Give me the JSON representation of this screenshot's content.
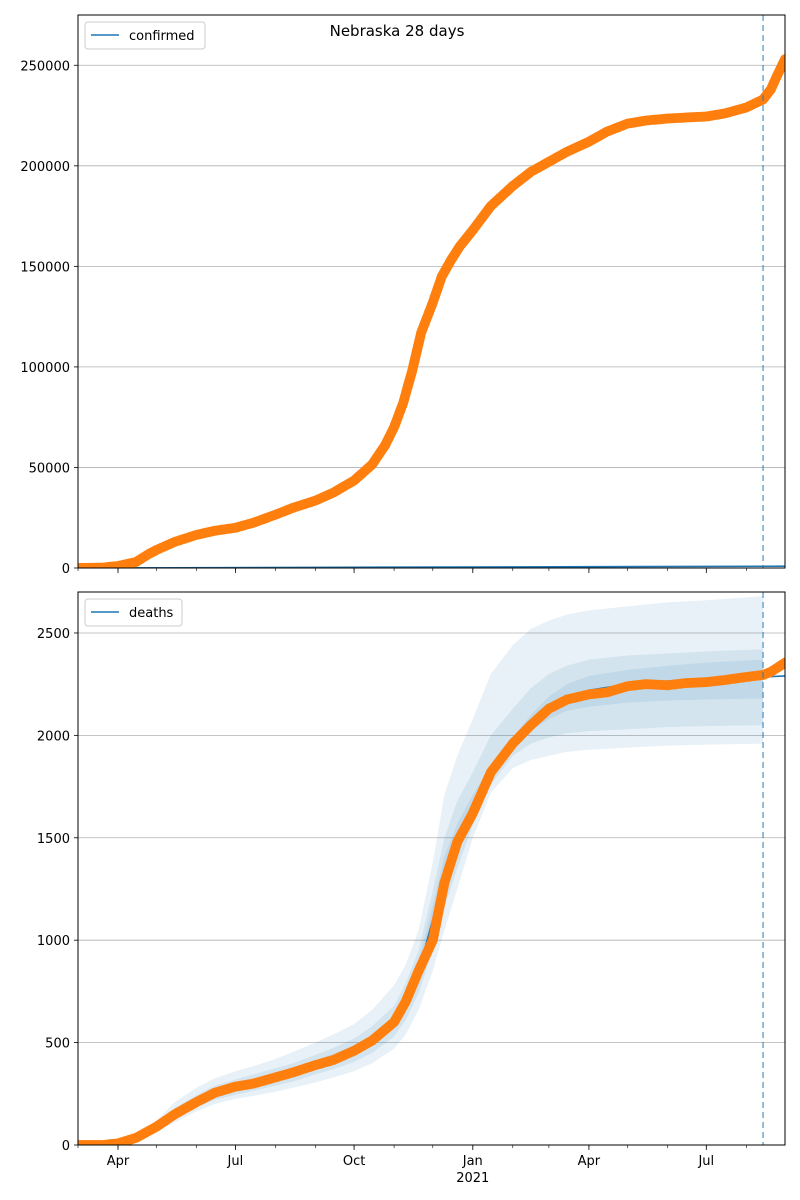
{
  "chart_data": [
    {
      "type": "line",
      "title": "Nebraska 28 days",
      "xlabel": "",
      "ylabel": "",
      "x_range": [
        "2020-03-01",
        "2021-08-31"
      ],
      "ylim": [
        0,
        275000
      ],
      "yticks": [
        0,
        50000,
        100000,
        150000,
        200000,
        250000
      ],
      "grid": "horizontal",
      "legend_position": "top-left",
      "vline_date": "2021-08-14",
      "vline_style": "dashed",
      "legend": [
        {
          "label": "confirmed",
          "color": "#1f77b4"
        }
      ],
      "model_line": {
        "name": "confirmed",
        "color": "#1f77b4",
        "x": [
          "2020-03-01",
          "2021-08-31"
        ],
        "y": [
          0,
          900
        ]
      },
      "observed": {
        "color": "#ff7f0e",
        "x": [
          "2020-03-01",
          "2020-03-20",
          "2020-04-01",
          "2020-04-15",
          "2020-04-25",
          "2020-05-01",
          "2020-05-15",
          "2020-06-01",
          "2020-06-15",
          "2020-07-01",
          "2020-07-15",
          "2020-08-01",
          "2020-08-15",
          "2020-09-01",
          "2020-09-15",
          "2020-10-01",
          "2020-10-15",
          "2020-10-25",
          "2020-11-01",
          "2020-11-08",
          "2020-11-15",
          "2020-11-22",
          "2020-12-01",
          "2020-12-08",
          "2020-12-15",
          "2020-12-22",
          "2021-01-01",
          "2021-01-15",
          "2021-02-01",
          "2021-02-15",
          "2021-03-01",
          "2021-03-15",
          "2021-04-01",
          "2021-04-15",
          "2021-05-01",
          "2021-05-15",
          "2021-06-01",
          "2021-06-15",
          "2021-07-01",
          "2021-07-15",
          "2021-08-01",
          "2021-08-14",
          "2021-08-20",
          "2021-08-25",
          "2021-08-31"
        ],
        "y": [
          0,
          200,
          1000,
          3000,
          7000,
          9000,
          13000,
          16500,
          18500,
          20000,
          22500,
          26500,
          30000,
          33500,
          37500,
          43500,
          51500,
          61000,
          70000,
          82000,
          98000,
          117000,
          132000,
          145000,
          153000,
          160000,
          168000,
          180000,
          190000,
          197000,
          202000,
          207000,
          212000,
          217000,
          221000,
          222500,
          223500,
          224000,
          224500,
          226000,
          229000,
          233000,
          238000,
          245000,
          253000
        ]
      }
    },
    {
      "type": "line",
      "title": "",
      "xlabel": "",
      "ylabel": "",
      "x_range": [
        "2020-03-01",
        "2021-08-31"
      ],
      "ylim": [
        0,
        2700
      ],
      "yticks": [
        0,
        500,
        1000,
        1500,
        2000,
        2500
      ],
      "xticks": [
        "Apr",
        "Jul",
        "Oct",
        "Jan",
        "Apr",
        "Jul"
      ],
      "xtick_dates": [
        "2020-04-01",
        "2020-07-01",
        "2020-10-01",
        "2021-01-01",
        "2021-04-01",
        "2021-07-01"
      ],
      "xtick_sublabel": "2021",
      "grid": "horizontal",
      "legend_position": "top-left",
      "vline_date": "2021-08-14",
      "vline_style": "dashed",
      "legend": [
        {
          "label": "deaths",
          "color": "#1f77b4"
        }
      ],
      "model_line": {
        "name": "deaths",
        "color": "#1f77b4",
        "x": [
          "2020-03-01",
          "2020-03-20",
          "2020-04-01",
          "2020-04-15",
          "2020-05-01",
          "2020-05-15",
          "2020-06-01",
          "2020-06-15",
          "2020-07-01",
          "2020-07-15",
          "2020-08-01",
          "2020-08-15",
          "2020-09-01",
          "2020-09-15",
          "2020-10-01",
          "2020-10-15",
          "2020-11-01",
          "2020-11-10",
          "2020-11-20",
          "2020-12-01",
          "2020-12-10",
          "2020-12-20",
          "2021-01-01",
          "2021-01-15",
          "2021-02-01",
          "2021-02-15",
          "2021-03-01",
          "2021-03-15",
          "2021-04-01",
          "2021-05-01",
          "2021-06-01",
          "2021-07-01",
          "2021-08-14",
          "2021-08-31"
        ],
        "y": [
          0,
          0,
          8,
          35,
          90,
          150,
          210,
          255,
          285,
          305,
          330,
          355,
          390,
          420,
          460,
          510,
          600,
          700,
          850,
          1100,
          1330,
          1500,
          1660,
          1820,
          1960,
          2060,
          2140,
          2190,
          2220,
          2250,
          2265,
          2275,
          2285,
          2290
        ]
      },
      "bands": [
        {
          "lower": [
            0,
            0,
            5,
            25,
            65,
            110,
            165,
            200,
            225,
            240,
            260,
            280,
            305,
            330,
            360,
            400,
            470,
            540,
            660,
            850,
            1050,
            1250,
            1500,
            1720,
            1840,
            1880,
            1900,
            1920,
            1930,
            1940,
            1950,
            1955,
            1960,
            null
          ],
          "upper": [
            0,
            0,
            12,
            50,
            120,
            210,
            280,
            325,
            360,
            385,
            420,
            455,
            500,
            540,
            590,
            660,
            780,
            880,
            1050,
            1380,
            1710,
            1900,
            2080,
            2300,
            2440,
            2520,
            2560,
            2590,
            2610,
            2630,
            2650,
            2660,
            2680,
            null
          ]
        },
        {
          "lower": [
            0,
            0,
            6,
            28,
            75,
            125,
            185,
            220,
            245,
            265,
            290,
            310,
            345,
            370,
            405,
            450,
            530,
            610,
            740,
            950,
            1160,
            1350,
            1560,
            1760,
            1900,
            1960,
            1990,
            2010,
            2020,
            2030,
            2040,
            2045,
            2050,
            null
          ],
          "upper": [
            0,
            0,
            11,
            44,
            105,
            180,
            245,
            290,
            320,
            345,
            375,
            400,
            440,
            475,
            520,
            580,
            680,
            790,
            950,
            1240,
            1500,
            1680,
            1820,
            2000,
            2130,
            2230,
            2300,
            2340,
            2370,
            2390,
            2400,
            2410,
            2420,
            null
          ]
        },
        {
          "lower": [
            0,
            0,
            7,
            31,
            82,
            138,
            198,
            240,
            268,
            288,
            312,
            335,
            370,
            398,
            434,
            482,
            570,
            660,
            800,
            1030,
            1250,
            1430,
            1610,
            1790,
            1930,
            2020,
            2080,
            2120,
            2140,
            2160,
            2170,
            2175,
            2180,
            null
          ],
          "upper": [
            0,
            0,
            10,
            40,
            98,
            165,
            225,
            270,
            302,
            325,
            350,
            378,
            413,
            445,
            488,
            540,
            630,
            740,
            900,
            1170,
            1410,
            1570,
            1710,
            1850,
            1990,
            2100,
            2190,
            2250,
            2290,
            2320,
            2340,
            2355,
            2370,
            null
          ]
        }
      ],
      "observed": {
        "color": "#ff7f0e",
        "x": [
          "2020-03-01",
          "2020-03-20",
          "2020-04-01",
          "2020-04-15",
          "2020-05-01",
          "2020-05-15",
          "2020-06-01",
          "2020-06-15",
          "2020-07-01",
          "2020-07-15",
          "2020-08-01",
          "2020-08-15",
          "2020-09-01",
          "2020-09-15",
          "2020-10-01",
          "2020-10-15",
          "2020-11-01",
          "2020-11-10",
          "2020-11-20",
          "2020-12-01",
          "2020-12-10",
          "2020-12-20",
          "2021-01-01",
          "2021-01-15",
          "2021-02-01",
          "2021-02-15",
          "2021-03-01",
          "2021-03-15",
          "2021-04-01",
          "2021-04-15",
          "2021-05-01",
          "2021-05-15",
          "2021-06-01",
          "2021-06-15",
          "2021-07-01",
          "2021-07-15",
          "2021-08-01",
          "2021-08-14",
          "2021-08-20",
          "2021-08-25",
          "2021-08-31"
        ],
        "y": [
          0,
          0,
          8,
          35,
          90,
          150,
          210,
          255,
          285,
          300,
          330,
          355,
          390,
          415,
          460,
          510,
          600,
          700,
          850,
          1000,
          1280,
          1480,
          1620,
          1820,
          1960,
          2050,
          2130,
          2175,
          2200,
          2210,
          2240,
          2250,
          2245,
          2255,
          2260,
          2270,
          2285,
          2295,
          2310,
          2330,
          2355
        ]
      }
    }
  ]
}
